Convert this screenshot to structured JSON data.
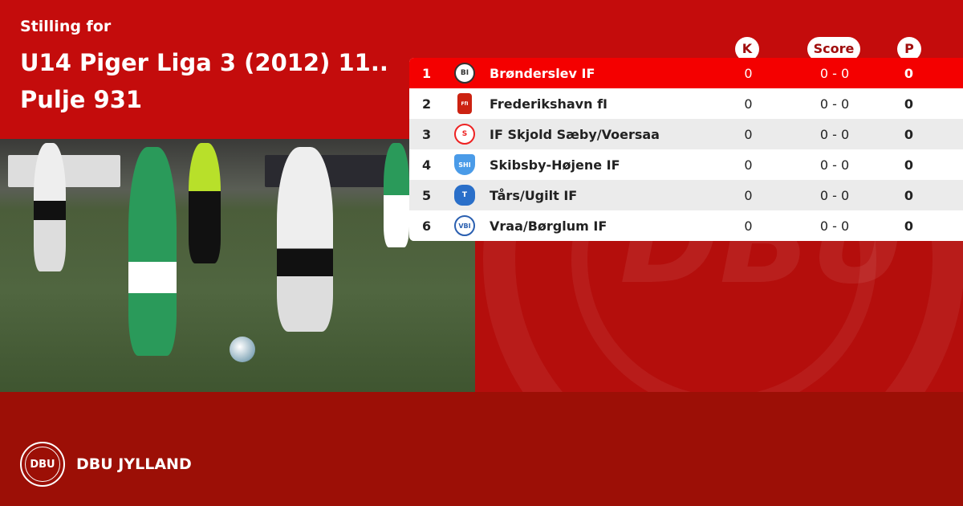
{
  "header": {
    "subtitle": "Stilling for",
    "title_line1": "U14 Piger Liga 3 (2012) 11..",
    "title_line2": "Pulje 931"
  },
  "columns": {
    "k": "K",
    "score": "Score",
    "p": "P"
  },
  "colors": {
    "top_red": "#c40c0c",
    "highlight_red": "#f40000",
    "footer_red": "#9c0f06"
  },
  "rows": [
    {
      "pos": "1",
      "team": "Brønderslev IF",
      "k": "0",
      "score": "0 - 0",
      "p": "0",
      "logo": "BI"
    },
    {
      "pos": "2",
      "team": "Frederikshavn fI",
      "k": "0",
      "score": "0 - 0",
      "p": "0",
      "logo": "FfI"
    },
    {
      "pos": "3",
      "team": "IF Skjold Sæby/Voersaa",
      "k": "0",
      "score": "0 - 0",
      "p": "0",
      "logo": "S"
    },
    {
      "pos": "4",
      "team": "Skibsby-Højene IF",
      "k": "0",
      "score": "0 - 0",
      "p": "0",
      "logo": "SHI"
    },
    {
      "pos": "5",
      "team": "Tårs/Ugilt IF",
      "k": "0",
      "score": "0 - 0",
      "p": "0",
      "logo": "T"
    },
    {
      "pos": "6",
      "team": "Vraa/Børglum IF",
      "k": "0",
      "score": "0 - 0",
      "p": "0",
      "logo": "VBI"
    }
  ],
  "footer": {
    "brand": "DBU JYLLAND",
    "seal_text": "DBU"
  }
}
